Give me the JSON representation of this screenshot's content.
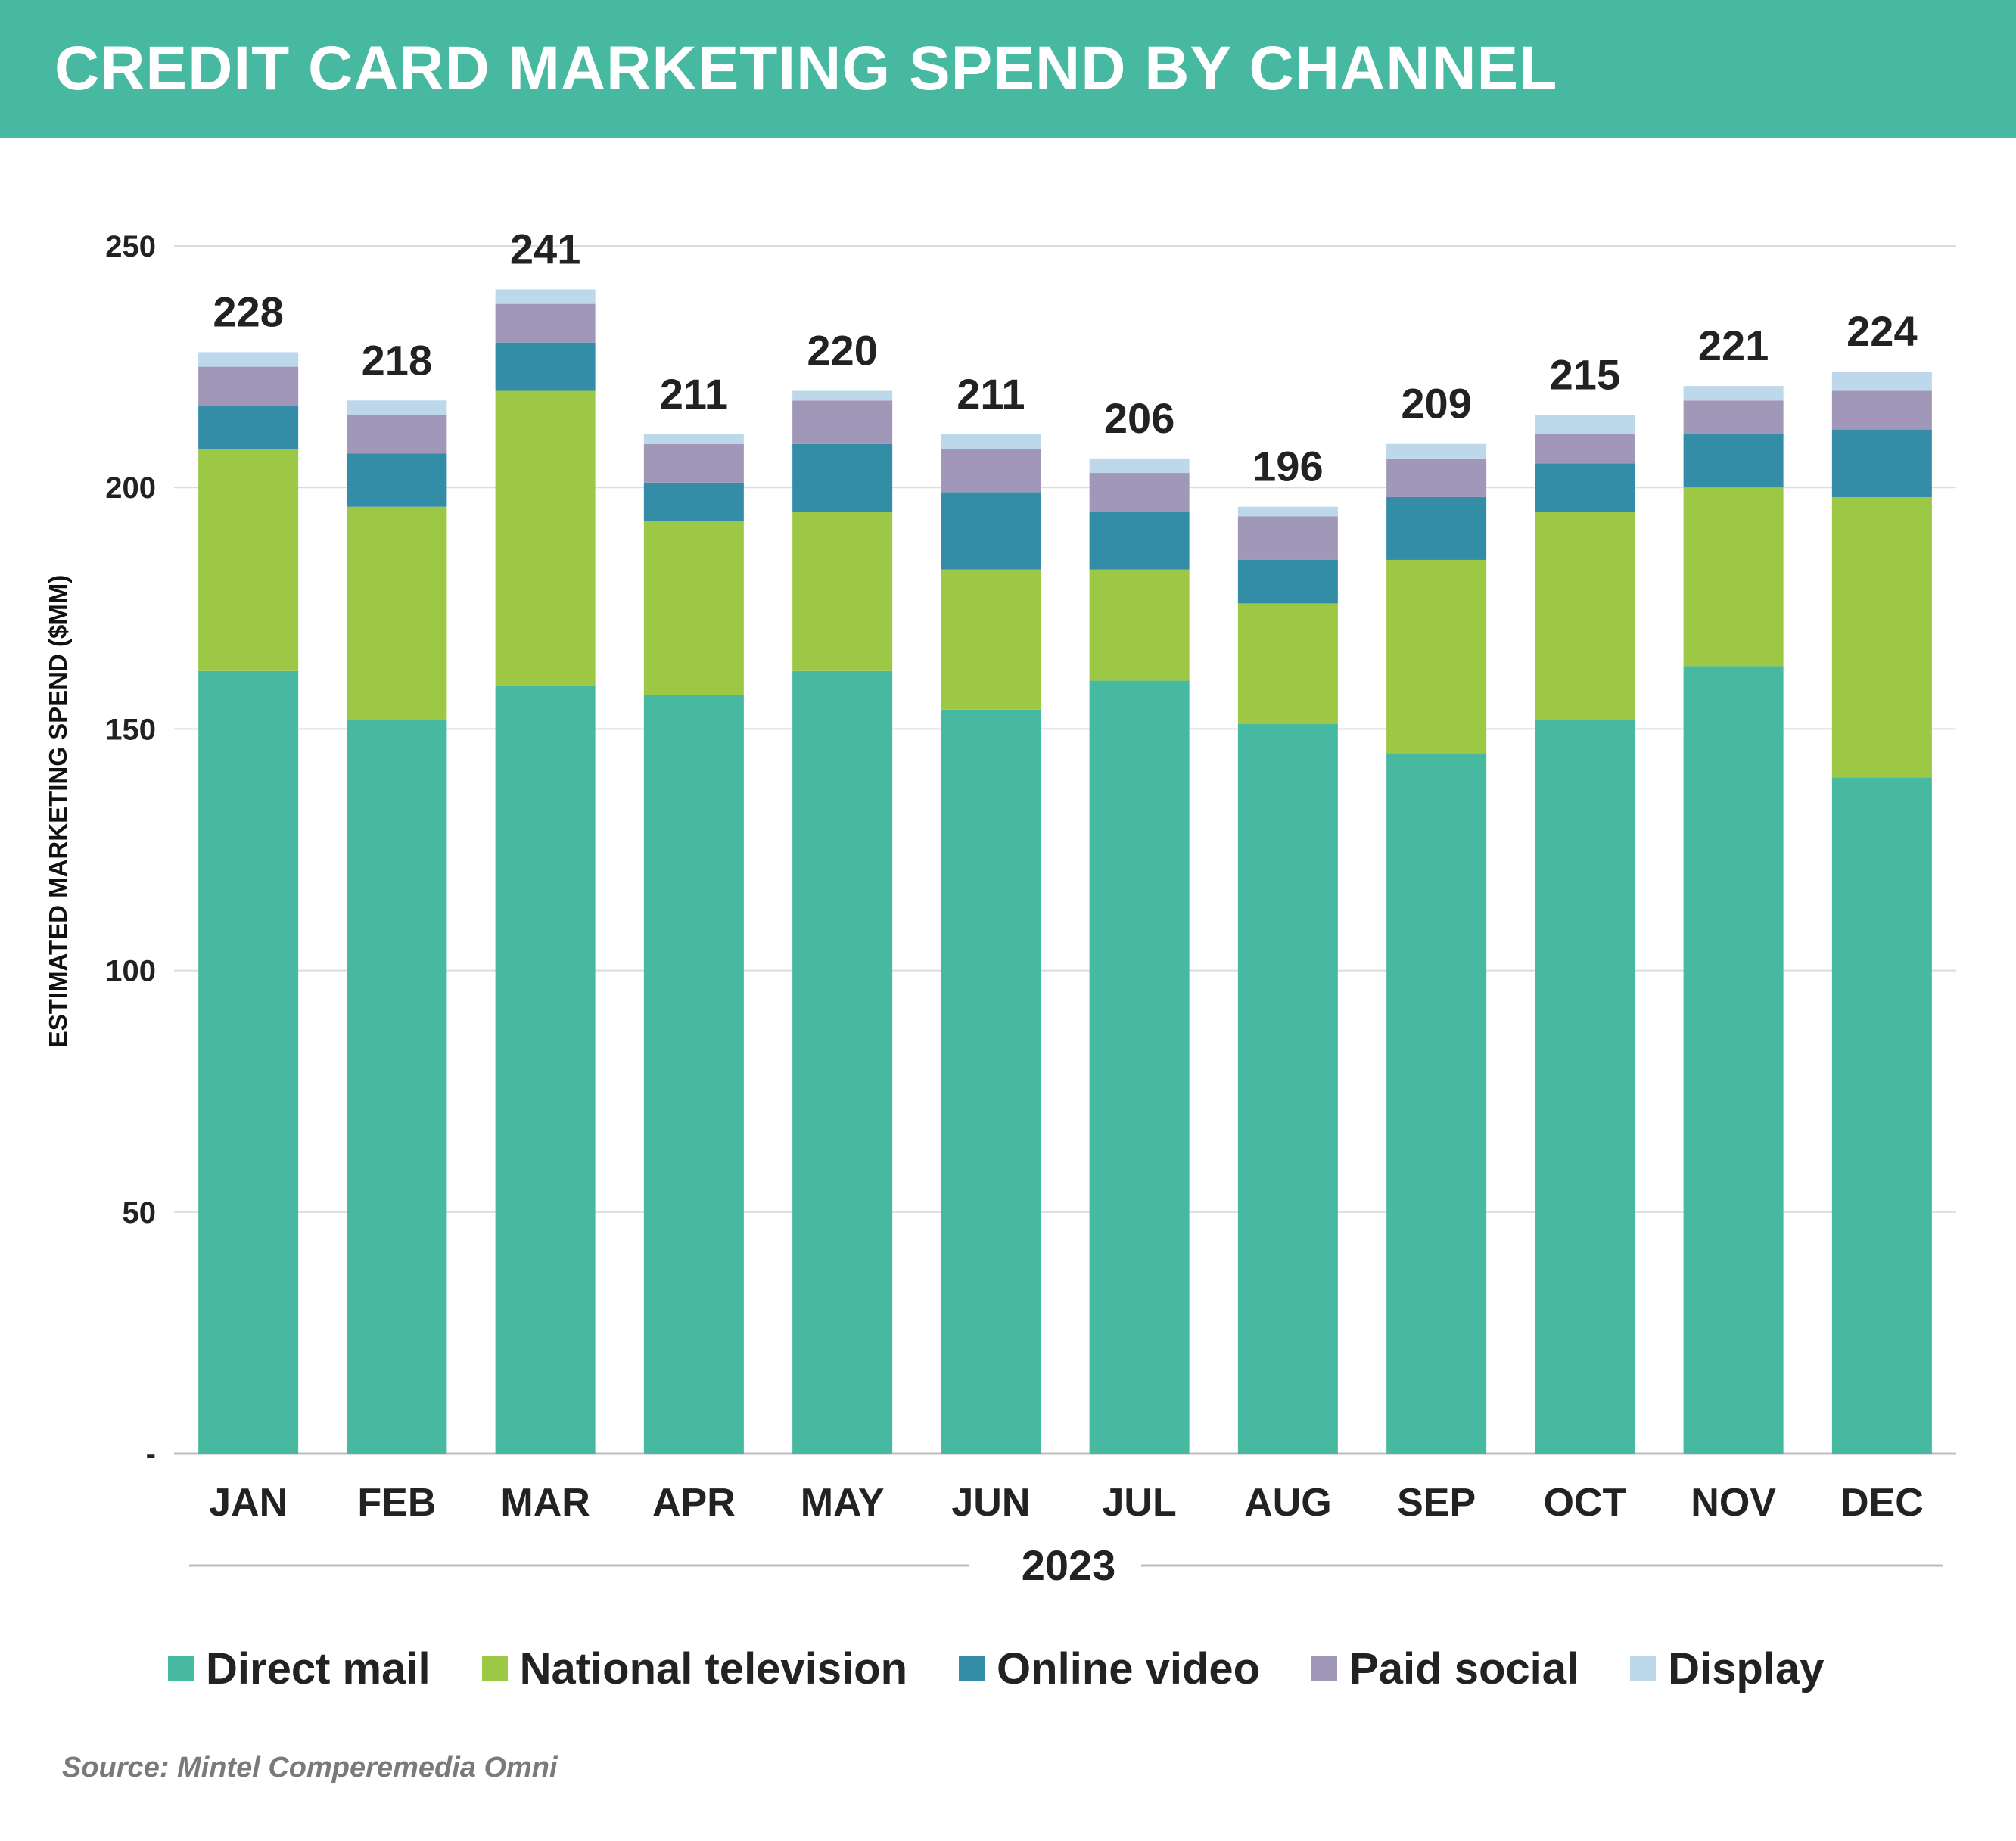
{
  "header": {
    "title": "CREDIT CARD MARKETING SPEND BY CHANNEL"
  },
  "source": "Source: Mintel Comperemedia Omni",
  "chart_data": {
    "type": "bar",
    "stacked": true,
    "categories": [
      "JAN",
      "FEB",
      "MAR",
      "APR",
      "MAY",
      "JUN",
      "JUL",
      "AUG",
      "SEP",
      "OCT",
      "NOV",
      "DEC"
    ],
    "xlabel": "2023",
    "ylabel": "ESTIMATED MARKETING SPEND ($MM)",
    "ylim": [
      0,
      250
    ],
    "yticks": [
      0,
      50,
      100,
      150,
      200,
      250
    ],
    "ytick_labels": [
      "-",
      "50",
      "100",
      "150",
      "200",
      "250"
    ],
    "grid": true,
    "legend_position": "bottom",
    "series": [
      {
        "name": "Direct mail",
        "color": "#47b9a0",
        "values": [
          162,
          152,
          159,
          157,
          162,
          154,
          160,
          151,
          145,
          152,
          163,
          140
        ]
      },
      {
        "name": "National television",
        "color": "#9dc846",
        "values": [
          46,
          44,
          61,
          36,
          33,
          29,
          23,
          25,
          40,
          43,
          37,
          58
        ]
      },
      {
        "name": "Online video",
        "color": "#348da6",
        "values": [
          9,
          11,
          10,
          8,
          14,
          16,
          12,
          9,
          13,
          10,
          11,
          14
        ]
      },
      {
        "name": "Paid social",
        "color": "#a197b9",
        "values": [
          8,
          8,
          8,
          8,
          9,
          9,
          8,
          9,
          8,
          6,
          7,
          8
        ]
      },
      {
        "name": "Display",
        "color": "#bcd8ea",
        "values": [
          3,
          3,
          3,
          2,
          2,
          3,
          3,
          2,
          3,
          4,
          3,
          4
        ]
      }
    ],
    "totals": [
      228,
      218,
      241,
      211,
      220,
      211,
      206,
      196,
      209,
      215,
      221,
      224
    ]
  }
}
